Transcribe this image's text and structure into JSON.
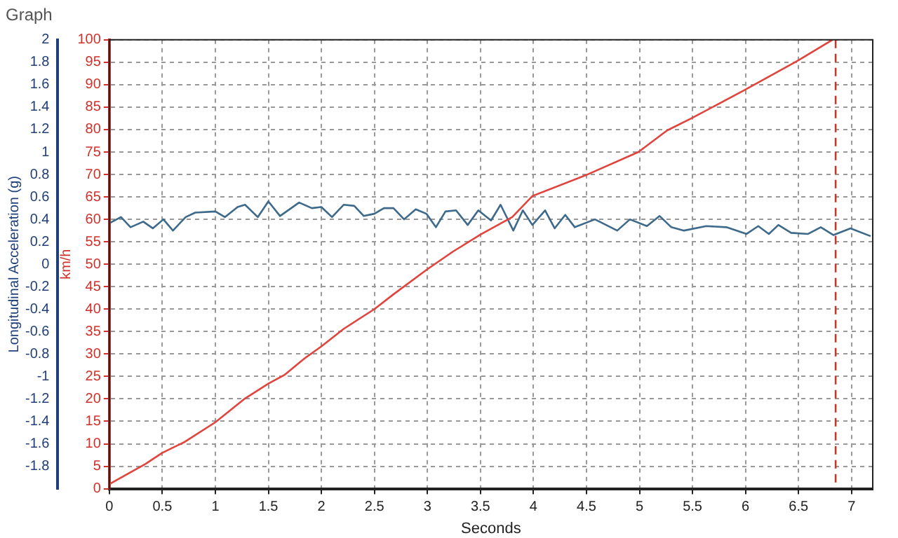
{
  "chart_data": {
    "type": "line",
    "title": "Graph",
    "xlabel": "Seconds",
    "ylabel": "km/h",
    "y2label": "Longitudinal Acceleration (g)",
    "xlim": [
      0,
      7.2
    ],
    "xticks": [
      0,
      0.5,
      1,
      1.5,
      2,
      2.5,
      3,
      3.5,
      4,
      4.5,
      5,
      5.5,
      6,
      6.5,
      7
    ],
    "ylim": [
      0,
      100
    ],
    "yticks": [
      0,
      5,
      10,
      15,
      20,
      25,
      30,
      35,
      40,
      45,
      50,
      55,
      60,
      65,
      70,
      75,
      80,
      85,
      90,
      95,
      100
    ],
    "y2lim": [
      -2,
      2
    ],
    "y2ticks": [
      -1.8,
      -1.6,
      -1.4,
      -1.2,
      -1,
      -0.8,
      -0.6,
      -0.4,
      -0.2,
      0,
      0.2,
      0.4,
      0.6,
      0.8,
      1,
      1.2,
      1.4,
      1.6,
      1.8,
      2
    ],
    "grid": true,
    "legend": false,
    "series": [
      {
        "color": "#e0443c",
        "x": [
          0,
          0.34,
          0.5,
          0.71,
          1,
          1.28,
          1.5,
          1.65,
          1.84,
          2,
          2.21,
          2.5,
          2.68,
          3,
          3.24,
          3.5,
          3.8,
          3.99,
          4.49,
          4.99,
          5.26,
          5.49,
          5.99,
          6.49,
          6.82
        ],
        "values": [
          1,
          5.5,
          8,
          10.4,
          14.8,
          20.1,
          23.4,
          25.3,
          29,
          31.7,
          35.6,
          40,
          43.3,
          48.9,
          52.8,
          56.6,
          60.5,
          65.2,
          69.8,
          75,
          79.8,
          82.5,
          88.8,
          95.3,
          100
        ]
      },
      {
        "color": "#3d6a8a",
        "axis": "y2",
        "x": [
          0.01,
          0.11,
          0.2,
          0.32,
          0.41,
          0.51,
          0.6,
          0.72,
          0.81,
          1,
          1.09,
          1.21,
          1.28,
          1.4,
          1.5,
          1.61,
          1.79,
          1.91,
          2,
          2.1,
          2.21,
          2.31,
          2.4,
          2.5,
          2.59,
          2.68,
          2.78,
          2.89,
          2.99,
          3.08,
          3.17,
          3.27,
          3.38,
          3.48,
          3.6,
          3.69,
          3.81,
          3.9,
          3.99,
          4.11,
          4.2,
          4.3,
          4.39,
          4.58,
          4.79,
          4.91,
          5.07,
          5.19,
          5.3,
          5.42,
          5.63,
          5.82,
          6.01,
          6.12,
          6.22,
          6.31,
          6.43,
          6.59,
          6.71,
          6.83,
          6.99,
          7.18
        ],
        "values": [
          0.37,
          0.42,
          0.33,
          0.38,
          0.32,
          0.4,
          0.3,
          0.42,
          0.46,
          0.47,
          0.42,
          0.51,
          0.53,
          0.42,
          0.56,
          0.43,
          0.55,
          0.5,
          0.51,
          0.42,
          0.53,
          0.52,
          0.43,
          0.45,
          0.5,
          0.5,
          0.4,
          0.49,
          0.45,
          0.33,
          0.47,
          0.48,
          0.35,
          0.48,
          0.39,
          0.53,
          0.3,
          0.48,
          0.35,
          0.48,
          0.32,
          0.44,
          0.33,
          0.4,
          0.3,
          0.4,
          0.34,
          0.43,
          0.33,
          0.3,
          0.34,
          0.33,
          0.27,
          0.34,
          0.27,
          0.35,
          0.28,
          0.27,
          0.33,
          0.26,
          0.32,
          0.25
        ]
      }
    ],
    "ref_lines": [
      {
        "axis": "x",
        "value": 6.85,
        "color": "#c0392b",
        "line_style": "dashed"
      }
    ]
  }
}
